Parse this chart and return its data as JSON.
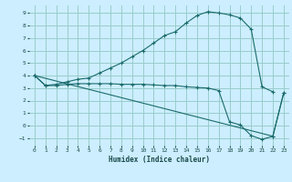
{
  "title": "",
  "xlabel": "Humidex (Indice chaleur)",
  "bg_color": "#cceeff",
  "grid_color": "#99cccc",
  "line_color": "#1a6b6b",
  "xlim": [
    -0.5,
    23.5
  ],
  "ylim": [
    -1.6,
    9.6
  ],
  "xticks": [
    0,
    1,
    2,
    3,
    4,
    5,
    6,
    7,
    8,
    9,
    10,
    11,
    12,
    13,
    14,
    15,
    16,
    17,
    18,
    19,
    20,
    21,
    22,
    23
  ],
  "yticks": [
    -1,
    0,
    1,
    2,
    3,
    4,
    5,
    6,
    7,
    8,
    9
  ],
  "line1_x": [
    0,
    1,
    2,
    3,
    4,
    5,
    6,
    7,
    8,
    9,
    10,
    11,
    12,
    13,
    14,
    15,
    16,
    17,
    18,
    19,
    20,
    21,
    22
  ],
  "line1_y": [
    4.0,
    3.2,
    3.3,
    3.5,
    3.7,
    3.8,
    4.2,
    4.6,
    5.0,
    5.5,
    6.0,
    6.6,
    7.2,
    7.5,
    8.2,
    8.8,
    9.1,
    9.0,
    8.85,
    8.6,
    7.7,
    3.1,
    2.7
  ],
  "line2_x": [
    0,
    1,
    2,
    3,
    4,
    5,
    6,
    7,
    8,
    9,
    10,
    11,
    12,
    13,
    14,
    15,
    16,
    17,
    18,
    19,
    20,
    21,
    22,
    23
  ],
  "line2_y": [
    4.0,
    3.2,
    3.2,
    3.3,
    3.35,
    3.35,
    3.35,
    3.35,
    3.3,
    3.3,
    3.3,
    3.25,
    3.2,
    3.2,
    3.1,
    3.05,
    3.0,
    2.8,
    0.3,
    0.05,
    -0.8,
    -1.1,
    -0.85,
    2.6
  ],
  "line3_x": [
    0,
    22,
    23
  ],
  "line3_y": [
    4.0,
    -0.85,
    2.6
  ]
}
